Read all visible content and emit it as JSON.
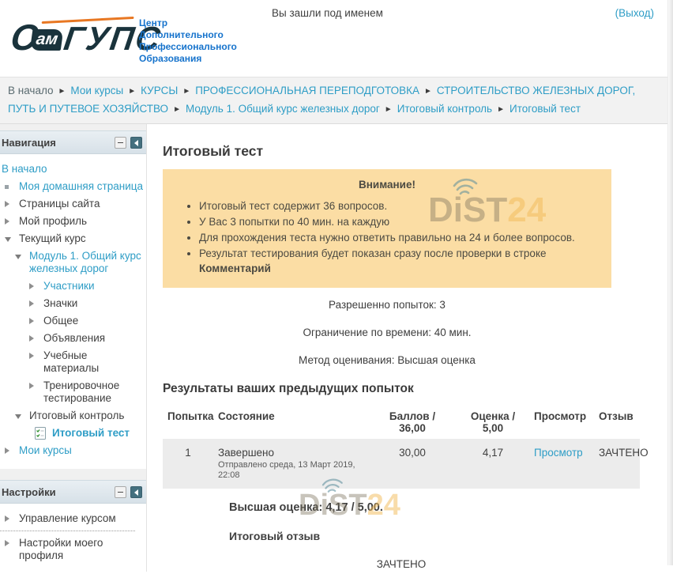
{
  "header": {
    "logo": {
      "brand_c": "С",
      "brand_am": "ам",
      "brand_gups": "ГУПС",
      "org_lines": [
        "Центр",
        "Дополнительного",
        "Профессионального",
        "Образования"
      ]
    },
    "logged_in_text": "Вы зашли под именем",
    "logout_label": "(Выход)"
  },
  "breadcrumb": {
    "separator": "►",
    "items": [
      {
        "label": "В начало",
        "link": false,
        "name": "crumb-home"
      },
      {
        "label": "Мои курсы",
        "link": true,
        "name": "crumb-my-courses"
      },
      {
        "label": "КУРСЫ",
        "link": true,
        "name": "crumb-courses"
      },
      {
        "label": "ПРОФЕССИОНАЛЬНАЯ ПЕРЕПОДГОТОВКА",
        "link": true,
        "name": "crumb-prof-retraining"
      },
      {
        "label": "СТРОИТЕЛЬСТВО ЖЕЛЕЗНЫХ ДОРОГ, ПУТЬ И ПУТЕВОЕ ХОЗЯЙСТВО",
        "link": true,
        "name": "crumb-program"
      },
      {
        "label": "Модуль 1. Общий курс железных дорог",
        "link": true,
        "name": "crumb-module1"
      },
      {
        "label": "Итоговый контроль",
        "link": true,
        "name": "crumb-final-control"
      },
      {
        "label": "Итоговый тест",
        "link": true,
        "name": "crumb-final-test"
      }
    ]
  },
  "sidebar": {
    "nav_block": {
      "title": "Навигация",
      "items": [
        {
          "label": "В начало",
          "link": true,
          "icon": "none",
          "level": 0,
          "name": "nav-home"
        },
        {
          "label": "Моя домашняя страница",
          "link": true,
          "icon": "square",
          "level": 1,
          "name": "nav-my-home"
        },
        {
          "label": "Страницы сайта",
          "link": false,
          "icon": "tri-right",
          "level": 1,
          "name": "nav-site-pages"
        },
        {
          "label": "Мой профиль",
          "link": false,
          "icon": "tri-right",
          "level": 1,
          "name": "nav-my-profile"
        },
        {
          "label": "Текущий курс",
          "link": false,
          "icon": "tri-down",
          "level": 1,
          "name": "nav-current-course"
        },
        {
          "label": "Модуль 1. Общий курс железных дорог",
          "link": true,
          "icon": "tri-down",
          "level": 2,
          "name": "nav-module1"
        },
        {
          "label": "Участники",
          "link": true,
          "icon": "tri-right",
          "level": 3,
          "name": "nav-participants"
        },
        {
          "label": "Значки",
          "link": false,
          "icon": "tri-right",
          "level": 3,
          "name": "nav-badges"
        },
        {
          "label": "Общее",
          "link": false,
          "icon": "tri-right",
          "level": 3,
          "name": "nav-general"
        },
        {
          "label": "Объявления",
          "link": false,
          "icon": "tri-right",
          "level": 3,
          "name": "nav-announcements"
        },
        {
          "label": "Учебные материалы",
          "link": false,
          "icon": "tri-right",
          "level": 3,
          "name": "nav-materials"
        },
        {
          "label": "Тренировочное тестирование",
          "link": false,
          "icon": "tri-right",
          "level": 3,
          "name": "nav-training-test"
        },
        {
          "label": "Итоговый контроль",
          "link": false,
          "icon": "tri-down",
          "level": 2,
          "name": "nav-final-control"
        },
        {
          "label": "Итоговый тест",
          "link": true,
          "icon": "quiz",
          "level": 4,
          "bold": true,
          "name": "nav-final-test"
        },
        {
          "label": "Мои курсы",
          "link": true,
          "icon": "tri-right",
          "level": 1,
          "name": "nav-my-courses"
        }
      ]
    },
    "settings_block": {
      "title": "Настройки",
      "items": [
        {
          "label": "Управление курсом",
          "link": false,
          "icon": "tri-right",
          "level": 1,
          "name": "settings-course-admin"
        },
        {
          "label": "Настройки моего профиля",
          "link": false,
          "icon": "tri-right",
          "level": 1,
          "divider_before": true,
          "name": "settings-my-profile"
        }
      ]
    }
  },
  "main": {
    "title": "Итоговый тест",
    "notice": {
      "title": "Внимание!",
      "bullets": [
        "Итоговый тест содержит 36 вопросов.",
        "У Вас 3 попытки по 40 мин. на каждую",
        "Для прохождения теста нужно ответить правильно на 24 и более вопросов."
      ],
      "last_bullet": {
        "text": "Результат тестирования будет показан сразу после проверки в строке ",
        "bold": "Комментарий"
      }
    },
    "info_lines": [
      "Разрешенно попыток: 3",
      "Ограничение по времени: 40 мин.",
      "Метод оценивания: Высшая оценка"
    ],
    "results": {
      "heading": "Результаты ваших предыдущих попыток",
      "table": {
        "headers": [
          [
            "Попытка"
          ],
          [
            "Состояние"
          ],
          [
            "Баллов /",
            "36,00"
          ],
          [
            "Оценка /",
            "5,00"
          ],
          [
            "Просмотр"
          ],
          [
            "Отзыв"
          ]
        ],
        "row": {
          "attempt": "1",
          "state": "Завершено",
          "state_detail": "Отправлено среда, 13 Март 2019, 22:08",
          "grade": "30,00",
          "mark": "4,17",
          "review_label": "Просмотр",
          "feedback": "ЗАЧТЕНО"
        }
      }
    },
    "final_grade": "Высшая оценка: 4,17 / 5,00.",
    "feedback_heading": "Итоговый отзыв",
    "feedback_value": "ЗАЧТЕНО"
  },
  "watermark": {
    "main": "DiST",
    "accent": "24"
  }
}
